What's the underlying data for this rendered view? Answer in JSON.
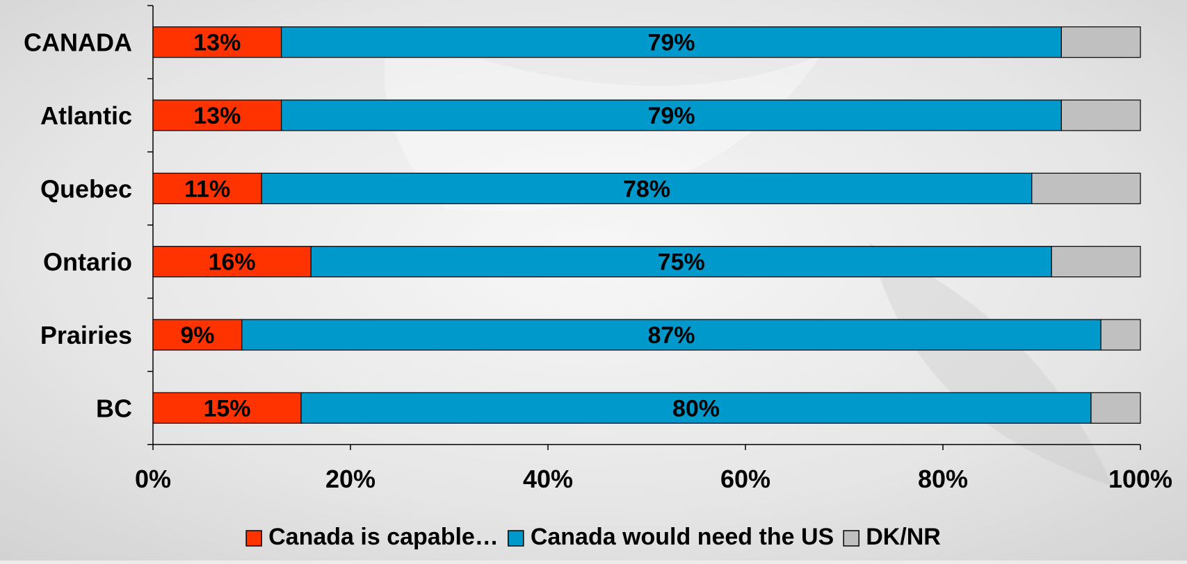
{
  "chart_data": {
    "type": "bar",
    "orientation": "horizontal",
    "stacked": true,
    "categories": [
      "CANADA",
      "Atlantic",
      "Quebec",
      "Ontario",
      "Prairies",
      "BC"
    ],
    "series": [
      {
        "name": "Canada is capable…",
        "color": "#ff3300",
        "values": [
          13,
          13,
          11,
          16,
          9,
          15
        ],
        "labels": [
          "13%",
          "13%",
          "11%",
          "16%",
          "9%",
          "15%"
        ]
      },
      {
        "name": "Canada would need the US",
        "color": "#0099cc",
        "values": [
          79,
          79,
          78,
          75,
          87,
          80
        ],
        "labels": [
          "79%",
          "79%",
          "78%",
          "75%",
          "87%",
          "80%"
        ]
      },
      {
        "name": "DK/NR",
        "color": "#c0c0c0",
        "values": [
          8,
          8,
          11,
          9,
          4,
          5
        ],
        "labels": [
          "",
          "",
          "",
          "",
          "",
          ""
        ]
      }
    ],
    "xlim": [
      0,
      100
    ],
    "x_ticks": [
      "0%",
      "20%",
      "40%",
      "60%",
      "80%",
      "100%"
    ],
    "legend_position": "bottom",
    "grid": false
  }
}
